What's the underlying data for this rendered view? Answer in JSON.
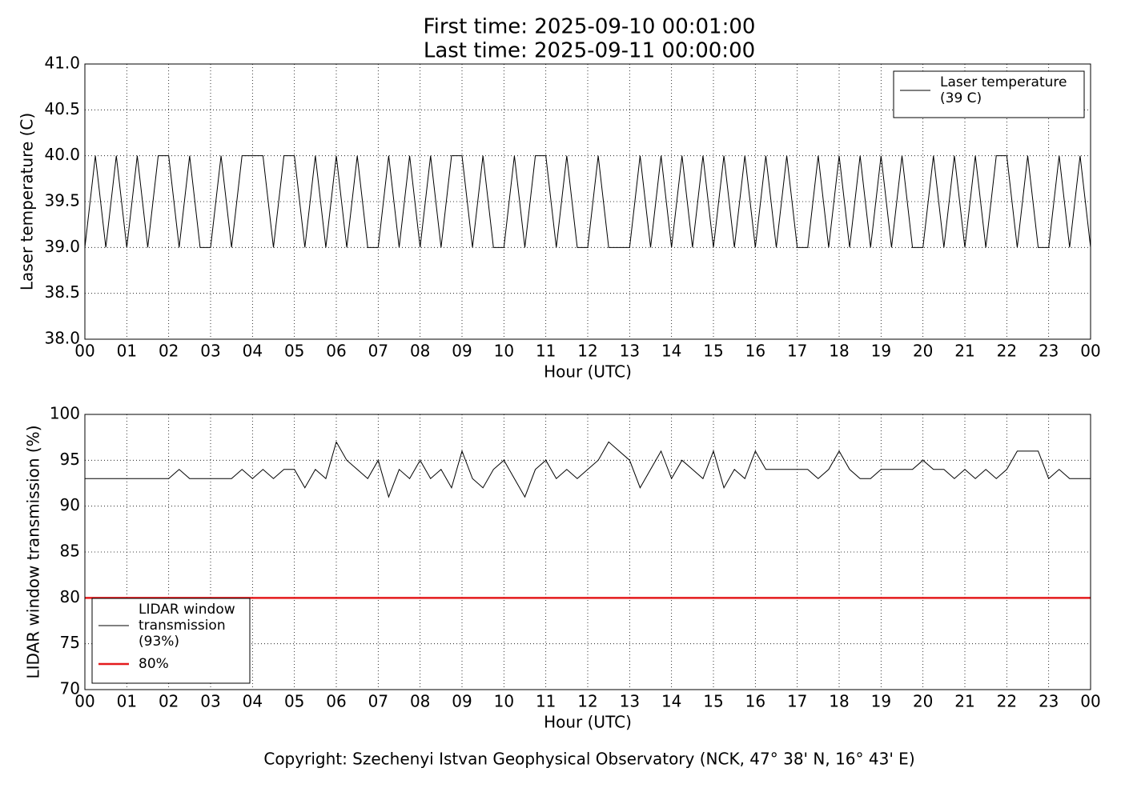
{
  "title": "First time: 2025-09-10 00:01:00",
  "subtitle": "Last time: 2025-09-11 00:00:00",
  "footer": "Copyright: Szechenyi Istvan Geophysical Observatory (NCK, 47° 38' N, 16° 43' E)",
  "chart_data": [
    {
      "type": "line",
      "xlabel": "Hour (UTC)",
      "ylabel": "Laser temperature (C)",
      "xlim": [
        0,
        24
      ],
      "ylim": [
        38,
        41
      ],
      "grid": true,
      "legend": "upper right",
      "xticks": [
        {
          "value": 0,
          "label": "00"
        },
        {
          "value": 1,
          "label": "01"
        },
        {
          "value": 2,
          "label": "02"
        },
        {
          "value": 3,
          "label": "03"
        },
        {
          "value": 4,
          "label": "04"
        },
        {
          "value": 5,
          "label": "05"
        },
        {
          "value": 6,
          "label": "06"
        },
        {
          "value": 7,
          "label": "07"
        },
        {
          "value": 8,
          "label": "08"
        },
        {
          "value": 9,
          "label": "09"
        },
        {
          "value": 10,
          "label": "10"
        },
        {
          "value": 11,
          "label": "11"
        },
        {
          "value": 12,
          "label": "12"
        },
        {
          "value": 13,
          "label": "13"
        },
        {
          "value": 14,
          "label": "14"
        },
        {
          "value": 15,
          "label": "15"
        },
        {
          "value": 16,
          "label": "16"
        },
        {
          "value": 17,
          "label": "17"
        },
        {
          "value": 18,
          "label": "18"
        },
        {
          "value": 19,
          "label": "19"
        },
        {
          "value": 20,
          "label": "20"
        },
        {
          "value": 21,
          "label": "21"
        },
        {
          "value": 22,
          "label": "22"
        },
        {
          "value": 23,
          "label": "23"
        },
        {
          "value": 24,
          "label": "00"
        }
      ],
      "yticks": [
        {
          "value": 38,
          "label": "38.0"
        },
        38.5,
        {
          "value": 39,
          "label": "39.0"
        },
        39.5,
        {
          "value": 40,
          "label": "40.0"
        },
        40.5,
        {
          "value": 41,
          "label": "41.0"
        }
      ],
      "x": [
        0,
        0.25,
        0.5,
        0.75,
        1,
        1.25,
        1.5,
        1.75,
        2,
        2.25,
        2.5,
        2.75,
        3,
        3.25,
        3.5,
        3.75,
        4,
        4.25,
        4.5,
        4.75,
        5,
        5.25,
        5.5,
        5.75,
        6,
        6.25,
        6.5,
        6.75,
        7,
        7.25,
        7.5,
        7.75,
        8,
        8.25,
        8.5,
        8.75,
        9,
        9.25,
        9.5,
        9.75,
        10,
        10.25,
        10.5,
        10.75,
        11,
        11.25,
        11.5,
        11.75,
        12,
        12.25,
        12.5,
        12.75,
        13,
        13.25,
        13.5,
        13.75,
        14,
        14.25,
        14.5,
        14.75,
        15,
        15.25,
        15.5,
        15.75,
        16,
        16.25,
        16.5,
        16.75,
        17,
        17.25,
        17.5,
        17.75,
        18,
        18.25,
        18.5,
        18.75,
        19,
        19.25,
        19.5,
        19.75,
        20,
        20.25,
        20.5,
        20.75,
        21,
        21.25,
        21.5,
        21.75,
        22,
        22.25,
        22.5,
        22.75,
        23,
        23.25,
        23.5,
        23.75,
        24
      ],
      "series": [
        {
          "name": "Laser temperature\n(39 C)",
          "color": "#000000",
          "linewidth": 1,
          "values": [
            39,
            40,
            39,
            40,
            39,
            40,
            39,
            40,
            40,
            39,
            40,
            39,
            39,
            40,
            39,
            40,
            40,
            40,
            39,
            40,
            40,
            39,
            40,
            39,
            40,
            39,
            40,
            39,
            39,
            40,
            39,
            40,
            39,
            40,
            39,
            40,
            40,
            39,
            40,
            39,
            39,
            40,
            39,
            40,
            40,
            39,
            40,
            39,
            39,
            40,
            39,
            39,
            39,
            40,
            39,
            40,
            39,
            40,
            39,
            40,
            39,
            40,
            39,
            40,
            39,
            40,
            39,
            40,
            39,
            39,
            40,
            39,
            40,
            39,
            40,
            39,
            40,
            39,
            40,
            39,
            39,
            40,
            39,
            40,
            39,
            40,
            39,
            40,
            40,
            39,
            40,
            39,
            39,
            40,
            39,
            40,
            39
          ]
        }
      ]
    },
    {
      "type": "line",
      "xlabel": "Hour (UTC)",
      "ylabel": "LIDAR window transmission (%)",
      "xlim": [
        0,
        24
      ],
      "ylim": [
        70,
        100
      ],
      "grid": true,
      "legend": "lower left",
      "xticks": [
        {
          "value": 0,
          "label": "00"
        },
        {
          "value": 1,
          "label": "01"
        },
        {
          "value": 2,
          "label": "02"
        },
        {
          "value": 3,
          "label": "03"
        },
        {
          "value": 4,
          "label": "04"
        },
        {
          "value": 5,
          "label": "05"
        },
        {
          "value": 6,
          "label": "06"
        },
        {
          "value": 7,
          "label": "07"
        },
        {
          "value": 8,
          "label": "08"
        },
        {
          "value": 9,
          "label": "09"
        },
        {
          "value": 10,
          "label": "10"
        },
        {
          "value": 11,
          "label": "11"
        },
        {
          "value": 12,
          "label": "12"
        },
        {
          "value": 13,
          "label": "13"
        },
        {
          "value": 14,
          "label": "14"
        },
        {
          "value": 15,
          "label": "15"
        },
        {
          "value": 16,
          "label": "16"
        },
        {
          "value": 17,
          "label": "17"
        },
        {
          "value": 18,
          "label": "18"
        },
        {
          "value": 19,
          "label": "19"
        },
        {
          "value": 20,
          "label": "20"
        },
        {
          "value": 21,
          "label": "21"
        },
        {
          "value": 22,
          "label": "22"
        },
        {
          "value": 23,
          "label": "23"
        },
        {
          "value": 24,
          "label": "00"
        }
      ],
      "yticks": [
        70,
        75,
        80,
        85,
        90,
        95,
        100
      ],
      "x": [
        0,
        0.25,
        0.5,
        0.75,
        1,
        1.25,
        1.5,
        1.75,
        2,
        2.25,
        2.5,
        2.75,
        3,
        3.25,
        3.5,
        3.75,
        4,
        4.25,
        4.5,
        4.75,
        5,
        5.25,
        5.5,
        5.75,
        6,
        6.25,
        6.5,
        6.75,
        7,
        7.25,
        7.5,
        7.75,
        8,
        8.25,
        8.5,
        8.75,
        9,
        9.25,
        9.5,
        9.75,
        10,
        10.25,
        10.5,
        10.75,
        11,
        11.25,
        11.5,
        11.75,
        12,
        12.25,
        12.5,
        12.75,
        13,
        13.25,
        13.5,
        13.75,
        14,
        14.25,
        14.5,
        14.75,
        15,
        15.25,
        15.5,
        15.75,
        16,
        16.25,
        16.5,
        16.75,
        17,
        17.25,
        17.5,
        17.75,
        18,
        18.25,
        18.5,
        18.75,
        19,
        19.25,
        19.5,
        19.75,
        20,
        20.25,
        20.5,
        20.75,
        21,
        21.25,
        21.5,
        21.75,
        22,
        22.25,
        22.5,
        22.75,
        23,
        23.25,
        23.5,
        23.75,
        24
      ],
      "series": [
        {
          "name": "LIDAR window\ntransmission\n(93%)",
          "color": "#000000",
          "linewidth": 1,
          "values": [
            93,
            93,
            93,
            93,
            93,
            93,
            93,
            93,
            93,
            94,
            93,
            93,
            93,
            93,
            93,
            94,
            93,
            94,
            93,
            94,
            94,
            92,
            94,
            93,
            97,
            95,
            94,
            93,
            95,
            91,
            94,
            93,
            95,
            93,
            94,
            92,
            96,
            93,
            92,
            94,
            95,
            93,
            91,
            94,
            95,
            93,
            94,
            93,
            94,
            95,
            97,
            96,
            95,
            92,
            94,
            96,
            93,
            95,
            94,
            93,
            96,
            92,
            94,
            93,
            96,
            94,
            94,
            94,
            94,
            94,
            93,
            94,
            96,
            94,
            93,
            93,
            94,
            94,
            94,
            94,
            95,
            94,
            94,
            93,
            94,
            93,
            94,
            93,
            94,
            96,
            96,
            96,
            93,
            94,
            93,
            93,
            93
          ]
        },
        {
          "name": "80%",
          "color": "#e41a1c",
          "linewidth": 2.5,
          "x": [
            0,
            24
          ],
          "values": [
            80,
            80
          ]
        }
      ]
    }
  ]
}
